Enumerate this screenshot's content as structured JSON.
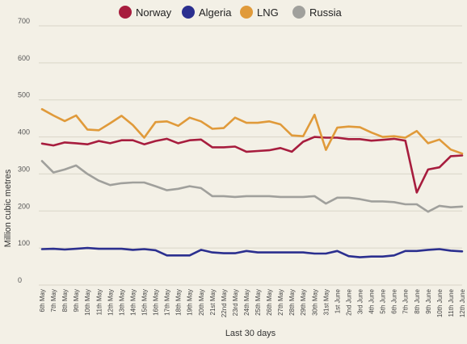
{
  "chart_data": {
    "type": "line",
    "title": "",
    "xlabel": "Last 30 days",
    "ylabel": "Million cubic metres",
    "ylim": [
      0,
      700
    ],
    "yticks": [
      0,
      100,
      200,
      300,
      400,
      500,
      600,
      700
    ],
    "grid": true,
    "legend_position": "top-center",
    "categories": [
      "6th May",
      "7th May",
      "8th May",
      "9th May",
      "10th May",
      "11th May",
      "12th May",
      "13th May",
      "14th May",
      "15th May",
      "16th May",
      "17th May",
      "18th May",
      "19th May",
      "20th May",
      "21st May",
      "22nd May",
      "23rd May",
      "24th May",
      "25th May",
      "26th May",
      "27th May",
      "28th May",
      "29th May",
      "30th May",
      "31st May",
      "1st June",
      "2nd June",
      "3rd June",
      "4th June",
      "5th June",
      "6th June",
      "7th June",
      "8th June",
      "9th June",
      "10th June",
      "11th June",
      "12th June"
    ],
    "series": [
      {
        "name": "Norway",
        "color": "#a71d3e",
        "values": [
          382,
          377,
          385,
          383,
          380,
          389,
          383,
          391,
          391,
          380,
          389,
          395,
          383,
          391,
          393,
          372,
          372,
          374,
          360,
          362,
          364,
          370,
          360,
          387,
          400,
          398,
          398,
          394,
          394,
          390,
          392,
          395,
          390,
          250,
          312,
          318,
          348,
          350
        ]
      },
      {
        "name": "Algeria",
        "color": "#2b2f8f",
        "values": [
          97,
          98,
          96,
          98,
          100,
          98,
          98,
          98,
          95,
          97,
          94,
          80,
          80,
          80,
          95,
          88,
          86,
          86,
          92,
          88,
          88,
          88,
          88,
          88,
          85,
          85,
          92,
          78,
          75,
          77,
          77,
          80,
          92,
          92,
          95,
          97,
          93,
          91
        ]
      },
      {
        "name": "LNG",
        "color": "#e09a3a",
        "values": [
          475,
          458,
          443,
          458,
          420,
          418,
          437,
          457,
          432,
          398,
          440,
          442,
          430,
          452,
          442,
          422,
          424,
          452,
          438,
          438,
          442,
          434,
          404,
          402,
          460,
          365,
          425,
          428,
          426,
          412,
          400,
          402,
          398,
          416,
          383,
          393,
          366,
          355
        ]
      },
      {
        "name": "Russia",
        "color": "#a0a09c",
        "values": [
          335,
          304,
          312,
          323,
          300,
          282,
          270,
          275,
          277,
          277,
          267,
          256,
          260,
          267,
          262,
          240,
          240,
          238,
          240,
          240,
          240,
          238,
          238,
          238,
          240,
          220,
          236,
          236,
          232,
          226,
          226,
          224,
          218,
          218,
          198,
          214,
          210,
          212
        ]
      }
    ]
  }
}
